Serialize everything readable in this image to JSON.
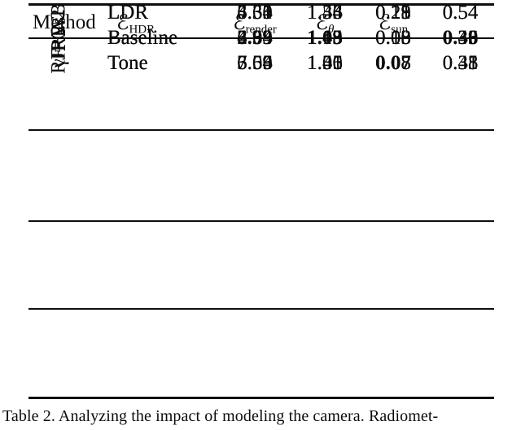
{
  "page": {
    "background": "#ffffff",
    "text_color": "#0c0c0c"
  },
  "table": {
    "header": {
      "method": "Method",
      "cols": [
        {
          "sym": "ℰ",
          "sub": "HDR"
        },
        {
          "sym": "ℰ",
          "sub": "render"
        },
        {
          "sym": "ℰ",
          "sub": "θ"
        },
        {
          "sym": "ℰ",
          "sub": "sun"
        },
        {
          "sym": "",
          "sub": ""
        }
      ]
    },
    "groups": [
      {
        "method": "JPGs",
        "rows": [
          {
            "label": "LDR",
            "values": [
              "5.30",
              "1.34",
              "0.21",
              "0.54"
            ],
            "bold": [
              false,
              false,
              false,
              false
            ]
          },
          {
            "label": "Baseline",
            "values": [
              "5.34",
              "1.19",
              "0.10",
              "0.43"
            ],
            "bold": [
              false,
              false,
              false,
              false
            ]
          },
          {
            "label": "Tone",
            "values": [
              "3.59",
              "1.06",
              "0.08",
              "0.31"
            ],
            "bold": [
              false,
              false,
              false,
              false
            ]
          }
        ]
      },
      {
        "method": "γ = 2.2",
        "rows": [
          {
            "label": "LDR",
            "values": [
              "6.33",
              "1.53",
              "0.19",
              "0.54"
            ],
            "bold": [
              false,
              false,
              false,
              false
            ]
          },
          {
            "label": "Baseline",
            "values": [
              "6.63",
              "1.45",
              "0.13",
              "0.49"
            ],
            "bold": [
              false,
              false,
              false,
              false
            ]
          },
          {
            "label": "Tone",
            "values": [
              "7.06",
              "1.50",
              "0.08",
              "0.43"
            ],
            "bold": [
              false,
              false,
              false,
              false
            ]
          }
        ]
      },
      {
        "method": "RF",
        "rows": [
          {
            "label": "LDR",
            "values": [
              "4.64",
              "1.46",
              "0.18",
              "0.54"
            ],
            "bold": [
              false,
              false,
              false,
              false
            ]
          },
          {
            "label": "Baseline",
            "values": [
              "4.33",
              "1.18",
              "0.08",
              "0.36"
            ],
            "bold": [
              false,
              false,
              false,
              false
            ]
          },
          {
            "label": "Tone",
            "values": [
              "6.64",
              "1.35",
              "0.07",
              "0.35"
            ],
            "bold": [
              false,
              false,
              true,
              false
            ]
          }
        ]
      },
      {
        "method": "RF+WB",
        "rows": [
          {
            "label": "LDR",
            "values": [
              "3.31",
              "1.34",
              "0.23",
              "0.54"
            ],
            "bold": [
              false,
              false,
              false,
              false
            ]
          },
          {
            "label": "Baseline",
            "values": [
              "2.99",
              "1.03",
              "0.08",
              "0.30"
            ],
            "bold": [
              true,
              true,
              false,
              true
            ]
          },
          {
            "label": "Tone",
            "values": [
              "6.55",
              "1.41",
              "0.08",
              "0.38"
            ],
            "bold": [
              false,
              false,
              false,
              false
            ]
          }
        ]
      }
    ]
  },
  "caption": "Table 2. Analyzing the impact of modeling the camera. Radiomet-"
}
